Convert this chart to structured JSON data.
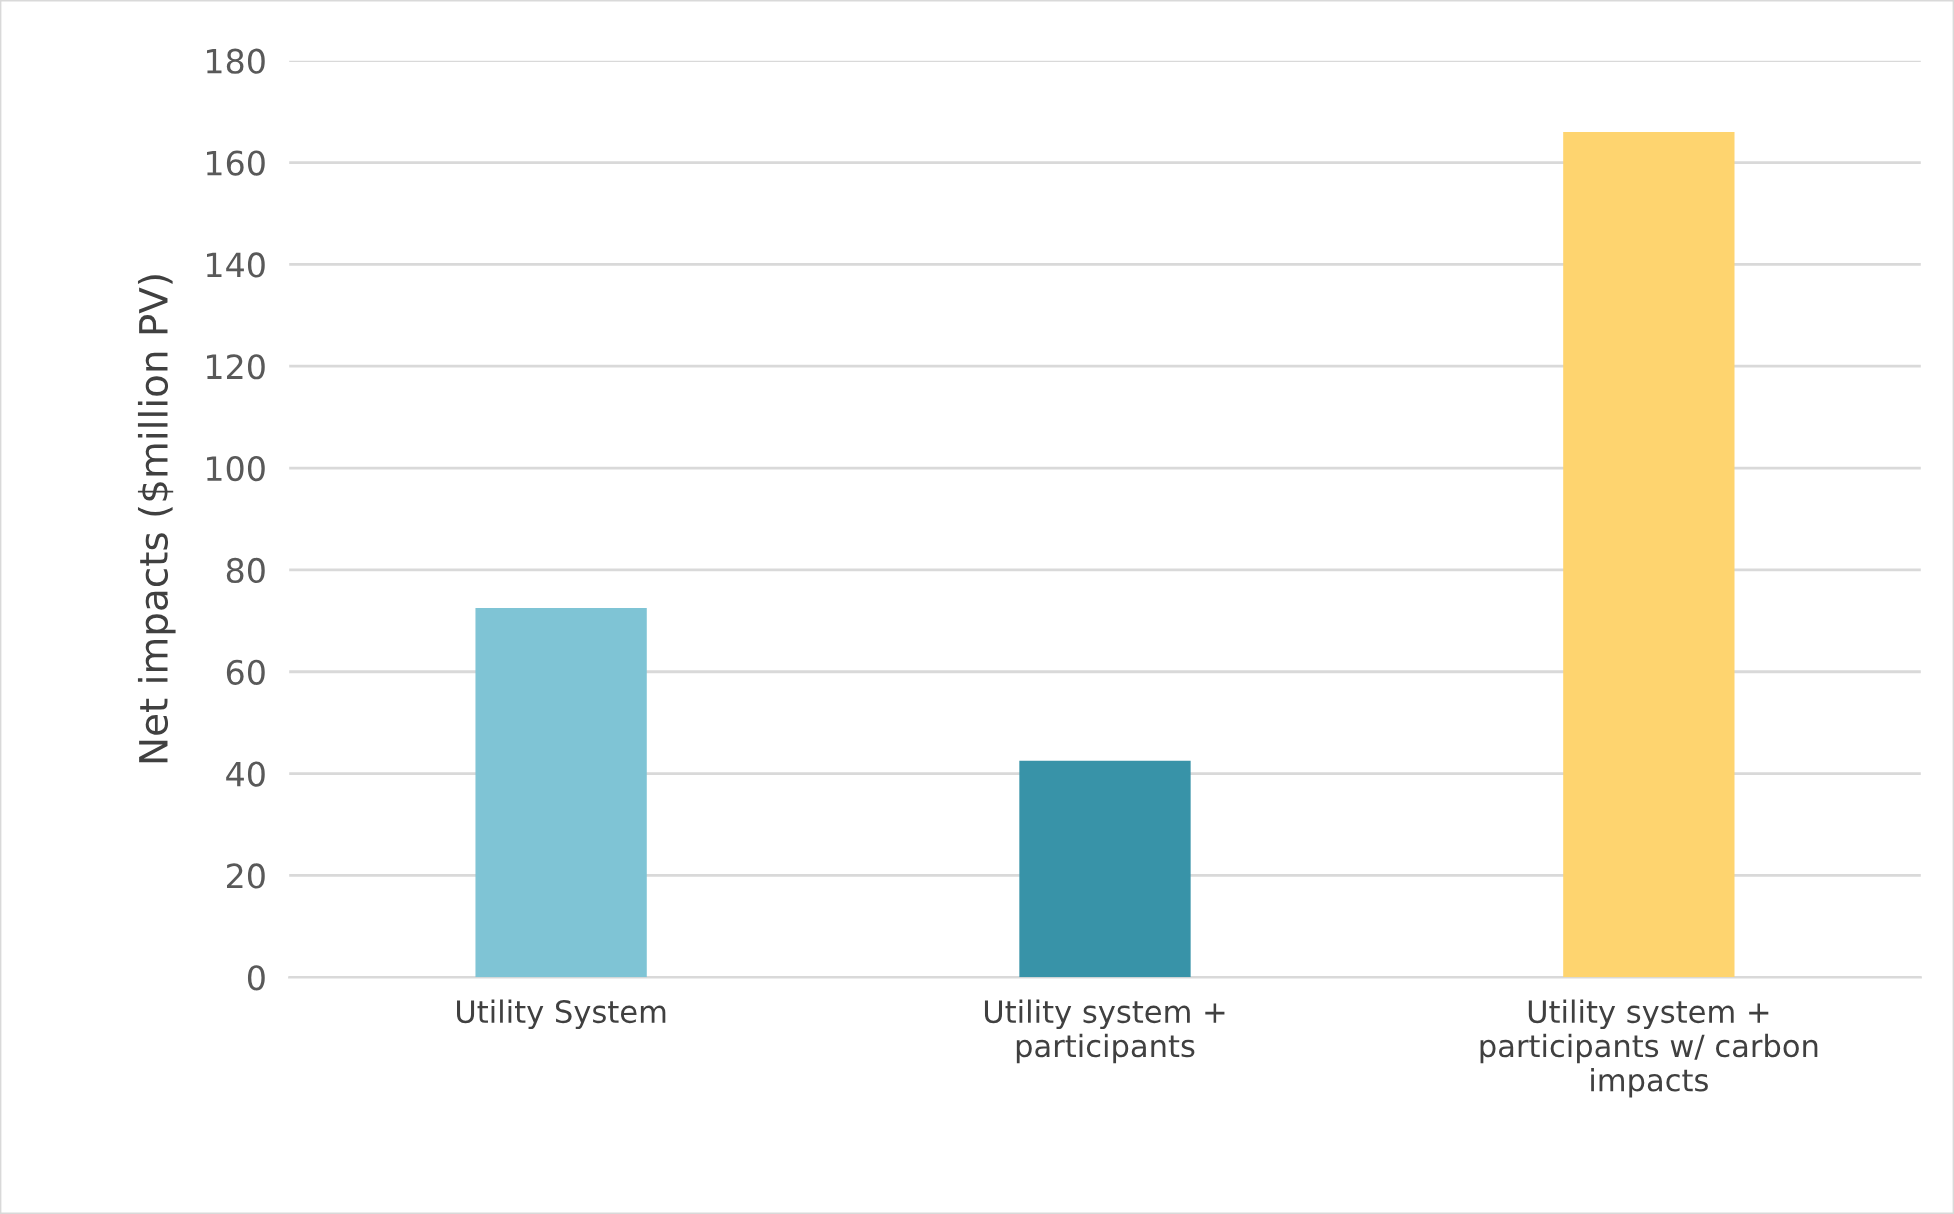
{
  "chart_data": {
    "type": "bar",
    "ylabel": "Net impacts ($million PV)",
    "categories": [
      "Utility System",
      "Utility system +\nparticipants",
      "Utility system +\nparticipants w/ carbon\nimpacts"
    ],
    "values": [
      72.5,
      42.5,
      166
    ],
    "colors": [
      "#7fc4d5",
      "#3893a8",
      "#fed46f"
    ],
    "ylim": [
      0,
      180
    ],
    "yticks": [
      0,
      20,
      40,
      60,
      80,
      100,
      120,
      140,
      160,
      180
    ],
    "grid": "y"
  }
}
